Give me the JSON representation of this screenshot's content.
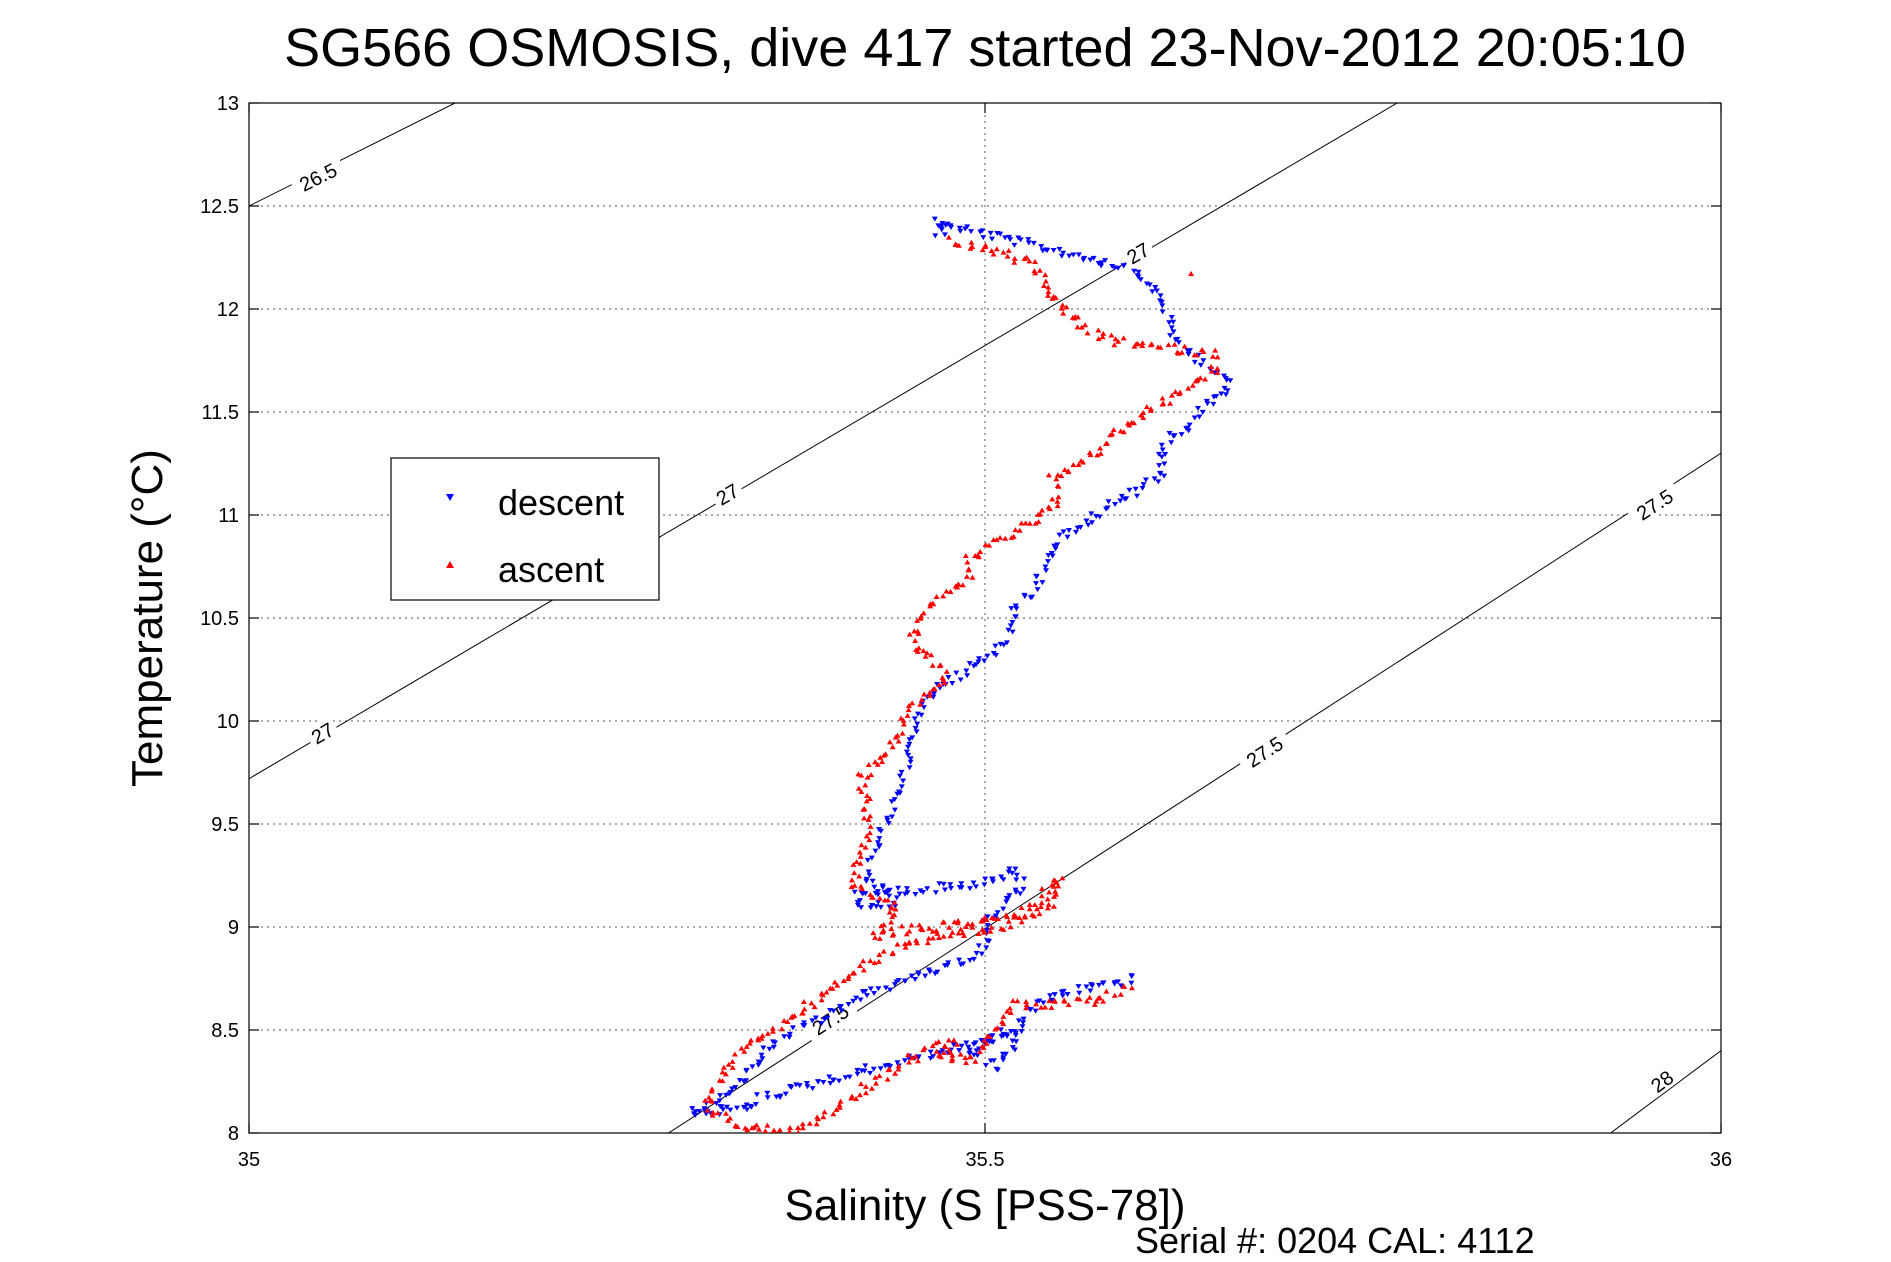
{
  "chart_data": {
    "type": "scatter",
    "title": "SG566 OSMOSIS, dive 417 started 23-Nov-2012 20:05:10",
    "xlabel": "Salinity (S [PSS-78])",
    "ylabel": "Temperature (°C)",
    "xlim": [
      35,
      36
    ],
    "ylim": [
      8,
      13
    ],
    "x_ticks": [
      35,
      35.5,
      36
    ],
    "x_tick_labels": [
      "35",
      "35.5",
      "36"
    ],
    "y_ticks": [
      8,
      8.5,
      9,
      9.5,
      10,
      10.5,
      11,
      11.5,
      12,
      12.5,
      13
    ],
    "y_tick_labels": [
      "8",
      "8.5",
      "9",
      "9.5",
      "10",
      "10.5",
      "11",
      "11.5",
      "12",
      "12.5",
      "13"
    ],
    "grid": true,
    "legend_placement": "center-left",
    "footer": "Serial #: 0204  CAL: 4112",
    "colors": {
      "descent": "#0000ff",
      "ascent": "#ff0000",
      "contour": "#000000"
    },
    "series": [
      {
        "name": "descent",
        "marker": "down-triangle",
        "color": "#0000ff",
        "path": [
          [
            35.465,
            12.43
          ],
          [
            35.475,
            12.42
          ],
          [
            35.468,
            12.37
          ],
          [
            35.478,
            12.4
          ],
          [
            35.6,
            12.2
          ],
          [
            35.62,
            12.05
          ],
          [
            35.625,
            11.95
          ],
          [
            35.63,
            11.85
          ],
          [
            35.64,
            11.78
          ],
          [
            35.655,
            11.72
          ],
          [
            35.665,
            11.65
          ],
          [
            35.665,
            11.6
          ],
          [
            35.65,
            11.55
          ],
          [
            35.645,
            11.48
          ],
          [
            35.635,
            11.42
          ],
          [
            35.625,
            11.38
          ],
          [
            35.62,
            11.3
          ],
          [
            35.62,
            11.2
          ],
          [
            35.605,
            11.12
          ],
          [
            35.585,
            11.05
          ],
          [
            35.565,
            10.95
          ],
          [
            35.545,
            10.85
          ],
          [
            35.54,
            10.75
          ],
          [
            35.535,
            10.65
          ],
          [
            35.52,
            10.55
          ],
          [
            35.52,
            10.45
          ],
          [
            35.51,
            10.35
          ],
          [
            35.49,
            10.25
          ],
          [
            35.465,
            10.15
          ],
          [
            35.455,
            10.05
          ],
          [
            35.45,
            9.95
          ],
          [
            35.45,
            9.85
          ],
          [
            35.445,
            9.75
          ],
          [
            35.44,
            9.65
          ],
          [
            35.435,
            9.55
          ],
          [
            35.43,
            9.45
          ],
          [
            35.425,
            9.35
          ],
          [
            35.42,
            9.25
          ],
          [
            35.43,
            9.18
          ],
          [
            35.44,
            9.12
          ],
          [
            35.42,
            9.1
          ],
          [
            35.41,
            9.15
          ],
          [
            35.45,
            9.18
          ],
          [
            35.48,
            9.2
          ],
          [
            35.5,
            9.22
          ],
          [
            35.52,
            9.28
          ],
          [
            35.525,
            9.2
          ],
          [
            35.51,
            9.1
          ],
          [
            35.5,
            9.0
          ],
          [
            35.5,
            8.9
          ],
          [
            35.48,
            8.82
          ],
          [
            35.45,
            8.75
          ],
          [
            35.42,
            8.68
          ],
          [
            35.4,
            8.6
          ],
          [
            35.38,
            8.52
          ],
          [
            35.36,
            8.45
          ],
          [
            35.35,
            8.38
          ],
          [
            35.34,
            8.3
          ],
          [
            35.33,
            8.22
          ],
          [
            35.32,
            8.15
          ],
          [
            35.3,
            8.1
          ],
          [
            35.34,
            8.12
          ],
          [
            35.35,
            8.18
          ],
          [
            35.5,
            8.45
          ],
          [
            35.52,
            8.5
          ],
          [
            35.49,
            8.4
          ],
          [
            35.5,
            8.35
          ],
          [
            35.51,
            8.32
          ],
          [
            35.53,
            8.6
          ],
          [
            35.55,
            8.68
          ],
          [
            35.58,
            8.72
          ],
          [
            35.605,
            8.75
          ]
        ]
      },
      {
        "name": "ascent",
        "marker": "up-triangle",
        "color": "#ff0000",
        "path": [
          [
            35.478,
            12.33
          ],
          [
            35.49,
            12.3
          ],
          [
            35.51,
            12.28
          ],
          [
            35.53,
            12.22
          ],
          [
            35.54,
            12.14
          ],
          [
            35.545,
            12.06
          ],
          [
            35.555,
            11.98
          ],
          [
            35.57,
            11.9
          ],
          [
            35.585,
            11.85
          ],
          [
            35.61,
            11.82
          ],
          [
            35.635,
            11.8
          ],
          [
            35.655,
            11.78
          ],
          [
            35.655,
            11.7
          ],
          [
            35.64,
            11.62
          ],
          [
            35.625,
            11.56
          ],
          [
            35.61,
            11.5
          ],
          [
            35.6,
            11.44
          ],
          [
            35.585,
            11.38
          ],
          [
            35.575,
            11.3
          ],
          [
            35.56,
            11.24
          ],
          [
            35.545,
            11.18
          ],
          [
            35.55,
            11.08
          ],
          [
            35.54,
            11.0
          ],
          [
            35.52,
            10.92
          ],
          [
            35.5,
            10.85
          ],
          [
            35.49,
            10.78
          ],
          [
            35.49,
            10.7
          ],
          [
            35.475,
            10.62
          ],
          [
            35.46,
            10.55
          ],
          [
            35.455,
            10.45
          ],
          [
            35.45,
            10.38
          ],
          [
            35.465,
            10.3
          ],
          [
            35.475,
            10.2
          ],
          [
            35.46,
            10.12
          ],
          [
            35.445,
            10.02
          ],
          [
            35.44,
            9.92
          ],
          [
            35.43,
            9.82
          ],
          [
            35.415,
            9.72
          ],
          [
            35.42,
            9.62
          ],
          [
            35.42,
            9.52
          ],
          [
            35.42,
            9.42
          ],
          [
            35.415,
            9.32
          ],
          [
            35.41,
            9.22
          ],
          [
            35.425,
            9.15
          ],
          [
            35.44,
            9.08
          ],
          [
            35.43,
            9.0
          ],
          [
            35.425,
            8.95
          ],
          [
            35.44,
            8.98
          ],
          [
            35.47,
            9.0
          ],
          [
            35.49,
            9.02
          ],
          [
            35.52,
            9.05
          ],
          [
            35.54,
            9.15
          ],
          [
            35.55,
            9.25
          ],
          [
            35.545,
            9.1
          ],
          [
            35.51,
            9.0
          ],
          [
            35.47,
            8.95
          ],
          [
            35.44,
            8.9
          ],
          [
            35.42,
            8.82
          ],
          [
            35.4,
            8.72
          ],
          [
            35.38,
            8.62
          ],
          [
            35.36,
            8.52
          ],
          [
            35.34,
            8.42
          ],
          [
            35.33,
            8.35
          ],
          [
            35.32,
            8.25
          ],
          [
            35.31,
            8.15
          ],
          [
            35.325,
            8.05
          ],
          [
            35.37,
            8.0
          ],
          [
            35.46,
            8.4
          ],
          [
            35.48,
            8.45
          ],
          [
            35.47,
            8.38
          ],
          [
            35.49,
            8.35
          ],
          [
            35.52,
            8.62
          ],
          [
            35.55,
            8.62
          ],
          [
            35.58,
            8.65
          ],
          [
            35.6,
            8.72
          ],
          [
            35.64,
            12.17
          ]
        ]
      }
    ],
    "isopycnals": [
      {
        "label": "26.5",
        "p1": [
          35.0,
          12.5
        ],
        "p2": [
          35.14,
          13.0
        ],
        "label_at": [
          35.047,
          12.64
        ]
      },
      {
        "label": "27",
        "p1": [
          35.0,
          9.72
        ],
        "p2": [
          35.78,
          13.0
        ],
        "label_at": [
          35.05,
          9.94
        ],
        "label_at_2": [
          35.325,
          11.1
        ],
        "label_at_3": [
          35.604,
          12.27
        ]
      },
      {
        "label": "27.5",
        "p1": [
          35.285,
          8.0
        ],
        "p2": [
          36.0,
          11.3
        ],
        "label_at": [
          35.395,
          8.55
        ],
        "label_at_2": [
          35.69,
          9.85
        ],
        "label_at_3": [
          35.955,
          11.05
        ]
      },
      {
        "label": "28",
        "p1": [
          35.925,
          8.0
        ],
        "p2": [
          36.0,
          8.4
        ],
        "label_at": [
          35.96,
          8.25
        ]
      }
    ]
  }
}
